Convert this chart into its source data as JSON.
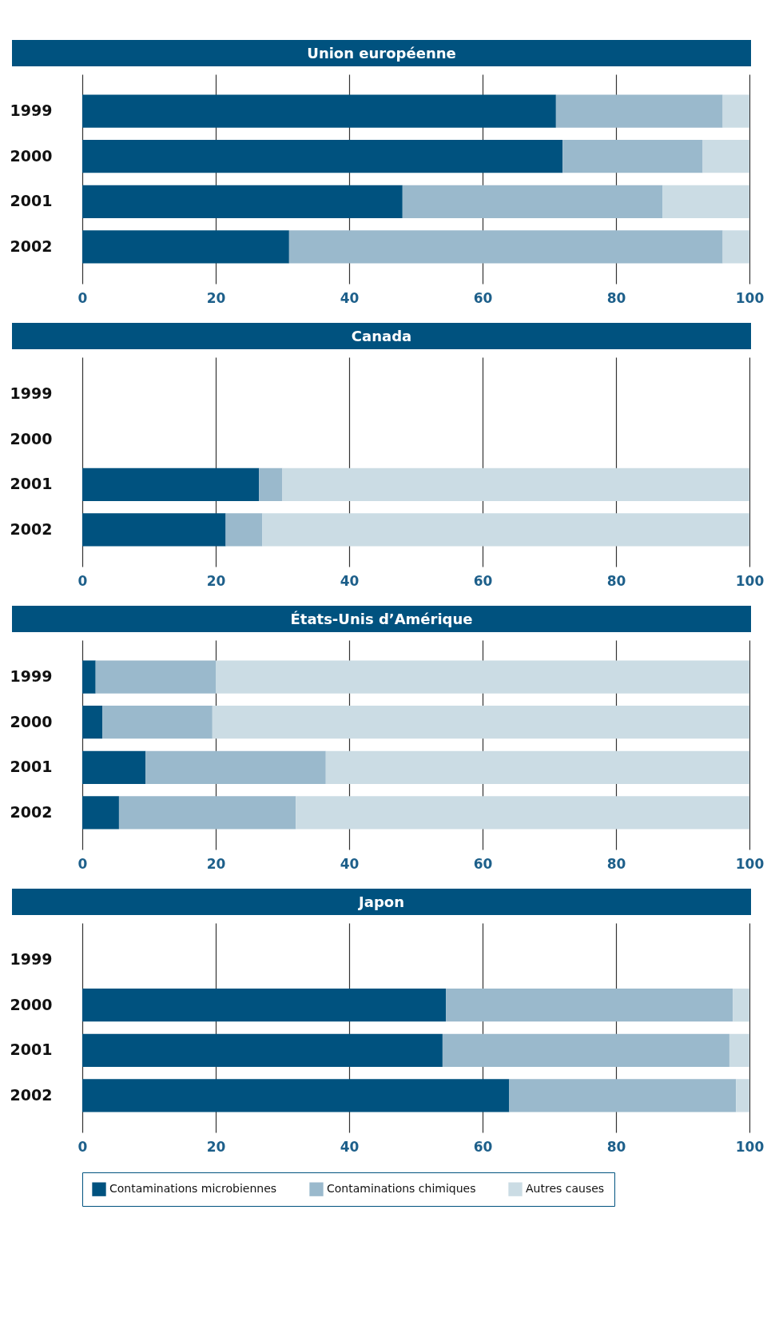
{
  "chart_data": [
    {
      "type": "bar",
      "title": "Union européenne",
      "orientation": "horizontal",
      "stacked": true,
      "categories": [
        "1999",
        "2000",
        "2001",
        "2002"
      ],
      "xlim": [
        0,
        100
      ],
      "xticks": [
        0,
        20,
        40,
        60,
        80,
        100
      ],
      "grid": "x",
      "series": [
        {
          "color": "#00527f",
          "values": [
            71,
            72,
            48,
            31
          ]
        },
        {
          "color": "#9ab9cc",
          "values": [
            25,
            21,
            39,
            65
          ]
        },
        {
          "color": "#cbdce4",
          "values": [
            4,
            7,
            13,
            4
          ]
        }
      ]
    },
    {
      "type": "bar",
      "title": "Canada",
      "orientation": "horizontal",
      "stacked": true,
      "categories": [
        "1999",
        "2000",
        "2001",
        "2002"
      ],
      "xlim": [
        0,
        100
      ],
      "xticks": [
        0,
        20,
        40,
        60,
        80,
        100
      ],
      "grid": "x",
      "series": [
        {
          "color": "#00527f",
          "values": [
            null,
            null,
            26.5,
            21.5
          ]
        },
        {
          "color": "#9ab9cc",
          "values": [
            null,
            null,
            3.5,
            5.5
          ]
        },
        {
          "color": "#cbdce4",
          "values": [
            null,
            null,
            70,
            73
          ]
        }
      ]
    },
    {
      "type": "bar",
      "title": "États-Unis d’Amérique",
      "orientation": "horizontal",
      "stacked": true,
      "categories": [
        "1999",
        "2000",
        "2001",
        "2002"
      ],
      "xlim": [
        0,
        100
      ],
      "xticks": [
        0,
        20,
        40,
        60,
        80,
        100
      ],
      "grid": "x",
      "series": [
        {
          "color": "#00527f",
          "values": [
            2,
            3,
            9.5,
            5.5
          ]
        },
        {
          "color": "#9ab9cc",
          "values": [
            18,
            16.5,
            27,
            26.5
          ]
        },
        {
          "color": "#cbdce4",
          "values": [
            80,
            80.5,
            63.5,
            68
          ]
        }
      ]
    },
    {
      "type": "bar",
      "title": "Japon",
      "orientation": "horizontal",
      "stacked": true,
      "categories": [
        "1999",
        "2000",
        "2001",
        "2002"
      ],
      "xlim": [
        0,
        100
      ],
      "xticks": [
        0,
        20,
        40,
        60,
        80,
        100
      ],
      "grid": "x",
      "legend": "bottom",
      "series": [
        {
          "name": "Contaminations microbiennes",
          "color": "#00527f",
          "values": [
            null,
            54.5,
            54,
            64
          ]
        },
        {
          "name": "Contaminations chimiques",
          "color": "#9ab9cc",
          "values": [
            null,
            43,
            43,
            34
          ]
        },
        {
          "name": "Autres causes",
          "color": "#cbdce4",
          "values": [
            null,
            2.5,
            3,
            2
          ]
        }
      ]
    }
  ]
}
